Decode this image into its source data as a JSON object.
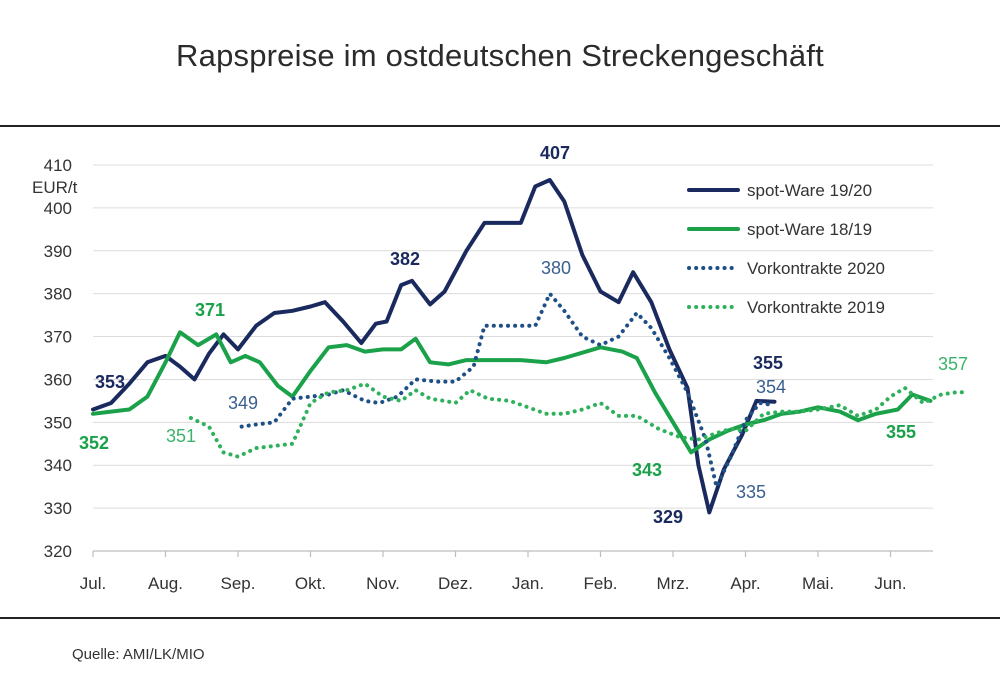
{
  "title": "Rapspreise im ostdeutschen Streckengeschäft",
  "source": "Quelle: AMI/LK/MIO",
  "chart_data": {
    "type": "line",
    "title": "Rapspreise im ostdeutschen Streckengeschäft",
    "ylabel": "EUR/t",
    "ylim": [
      320,
      410
    ],
    "yticks": [
      "410",
      "400",
      "390",
      "380",
      "370",
      "360",
      "350",
      "340",
      "330",
      "320"
    ],
    "categories": [
      "Jul.",
      "Aug.",
      "Sep.",
      "Okt.",
      "Nov.",
      "Dez.",
      "Jan.",
      "Feb.",
      "Mrz.",
      "Apr.",
      "Mai.",
      "Jun."
    ],
    "grid": true,
    "legend_position": "top-right",
    "series": [
      {
        "name": "spot-Ware 19/20",
        "color": "#1b2a5e",
        "style": "solid",
        "points": [
          [
            0,
            353
          ],
          [
            0.25,
            354.5
          ],
          [
            0.5,
            359
          ],
          [
            0.75,
            364
          ],
          [
            1.0,
            365.5
          ],
          [
            1.2,
            363
          ],
          [
            1.4,
            360
          ],
          [
            1.6,
            366
          ],
          [
            1.8,
            370.5
          ],
          [
            2.0,
            367
          ],
          [
            2.25,
            372.5
          ],
          [
            2.5,
            375.5
          ],
          [
            2.75,
            376
          ],
          [
            3.0,
            377
          ],
          [
            3.2,
            378
          ],
          [
            3.45,
            373.5
          ],
          [
            3.7,
            368.5
          ],
          [
            3.9,
            373
          ],
          [
            4.05,
            373.5
          ],
          [
            4.25,
            382
          ],
          [
            4.4,
            383
          ],
          [
            4.65,
            377.5
          ],
          [
            4.85,
            380.5
          ],
          [
            5.15,
            390
          ],
          [
            5.4,
            396.5
          ],
          [
            5.7,
            396.5
          ],
          [
            5.9,
            396.5
          ],
          [
            6.1,
            405
          ],
          [
            6.3,
            406.5
          ],
          [
            6.5,
            401.5
          ],
          [
            6.75,
            389
          ],
          [
            7.0,
            380.5
          ],
          [
            7.25,
            378
          ],
          [
            7.45,
            385
          ],
          [
            7.7,
            378
          ],
          [
            7.95,
            367
          ],
          [
            8.2,
            358
          ],
          [
            8.35,
            340
          ],
          [
            8.5,
            329
          ],
          [
            8.7,
            339
          ],
          [
            8.95,
            347
          ],
          [
            9.15,
            355
          ],
          [
            9.4,
            354.8
          ]
        ]
      },
      {
        "name": "spot-Ware 18/19",
        "color": "#1aa14a",
        "style": "solid",
        "points": [
          [
            0,
            352
          ],
          [
            0.25,
            352.5
          ],
          [
            0.5,
            353
          ],
          [
            0.75,
            356
          ],
          [
            1.0,
            364
          ],
          [
            1.2,
            371
          ],
          [
            1.45,
            368
          ],
          [
            1.7,
            370.5
          ],
          [
            1.9,
            364
          ],
          [
            2.1,
            365.5
          ],
          [
            2.3,
            364
          ],
          [
            2.55,
            358.5
          ],
          [
            2.75,
            356
          ],
          [
            3.0,
            362
          ],
          [
            3.25,
            367.5
          ],
          [
            3.5,
            368
          ],
          [
            3.75,
            366.5
          ],
          [
            4.0,
            367
          ],
          [
            4.25,
            367
          ],
          [
            4.45,
            369.5
          ],
          [
            4.65,
            364
          ],
          [
            4.9,
            363.5
          ],
          [
            5.15,
            364.5
          ],
          [
            5.4,
            364.5
          ],
          [
            5.9,
            364.5
          ],
          [
            6.25,
            364
          ],
          [
            6.5,
            365
          ],
          [
            7.0,
            367.5
          ],
          [
            7.3,
            366.5
          ],
          [
            7.5,
            365
          ],
          [
            7.75,
            357
          ],
          [
            8.0,
            350
          ],
          [
            8.25,
            343
          ],
          [
            8.5,
            346
          ],
          [
            8.75,
            348
          ],
          [
            9.0,
            349.5
          ],
          [
            9.25,
            350.5
          ],
          [
            9.5,
            352
          ],
          [
            9.75,
            352.5
          ],
          [
            10.0,
            353.5
          ],
          [
            10.3,
            352.5
          ],
          [
            10.55,
            350.5
          ],
          [
            10.8,
            352
          ],
          [
            11.1,
            353
          ],
          [
            11.3,
            356.5
          ],
          [
            11.55,
            355
          ]
        ]
      },
      {
        "name": "Vorkontrakte 2020",
        "color": "#1e4f86",
        "style": "dotted",
        "points": [
          [
            2.05,
            349
          ],
          [
            2.25,
            349.5
          ],
          [
            2.5,
            350
          ],
          [
            2.75,
            355.5
          ],
          [
            3.0,
            356
          ],
          [
            3.25,
            356.5
          ],
          [
            3.45,
            357.5
          ],
          [
            3.75,
            355
          ],
          [
            3.95,
            354.5
          ],
          [
            4.2,
            356
          ],
          [
            4.45,
            360
          ],
          [
            4.75,
            359.5
          ],
          [
            5.0,
            359.5
          ],
          [
            5.25,
            363
          ],
          [
            5.4,
            372.5
          ],
          [
            5.9,
            372.5
          ],
          [
            6.1,
            372.5
          ],
          [
            6.3,
            380
          ],
          [
            6.5,
            376
          ],
          [
            6.75,
            370
          ],
          [
            7.0,
            368
          ],
          [
            7.25,
            370
          ],
          [
            7.5,
            375.5
          ],
          [
            7.7,
            372
          ],
          [
            7.95,
            365
          ],
          [
            8.2,
            357
          ],
          [
            8.45,
            346
          ],
          [
            8.6,
            335
          ],
          [
            8.8,
            342
          ],
          [
            9.0,
            350.5
          ],
          [
            9.2,
            354.5
          ],
          [
            9.4,
            354
          ]
        ]
      },
      {
        "name": "Vorkontrakte 2019",
        "color": "#2fb15c",
        "style": "dotted",
        "points": [
          [
            1.35,
            351
          ],
          [
            1.6,
            349
          ],
          [
            1.8,
            343
          ],
          [
            2.0,
            342
          ],
          [
            2.25,
            344
          ],
          [
            2.5,
            344.5
          ],
          [
            2.75,
            345
          ],
          [
            3.0,
            354.5
          ],
          [
            3.25,
            357
          ],
          [
            3.5,
            357.5
          ],
          [
            3.75,
            359
          ],
          [
            4.0,
            356
          ],
          [
            4.25,
            355
          ],
          [
            4.45,
            357.5
          ],
          [
            4.65,
            355.5
          ],
          [
            4.85,
            355
          ],
          [
            5.0,
            354.5
          ],
          [
            5.2,
            357.5
          ],
          [
            5.45,
            355.5
          ],
          [
            5.75,
            355
          ],
          [
            6.0,
            353.5
          ],
          [
            6.25,
            352
          ],
          [
            6.5,
            352
          ],
          [
            6.75,
            353
          ],
          [
            7.0,
            354.5
          ],
          [
            7.25,
            351.5
          ],
          [
            7.5,
            351.5
          ],
          [
            7.8,
            348.5
          ],
          [
            8.1,
            346.5
          ],
          [
            8.35,
            346
          ],
          [
            8.6,
            347.5
          ],
          [
            8.8,
            348.5
          ],
          [
            9.0,
            348
          ],
          [
            9.25,
            352
          ],
          [
            9.5,
            352.5
          ],
          [
            9.75,
            352.5
          ],
          [
            10.0,
            353
          ],
          [
            10.3,
            354
          ],
          [
            10.55,
            351.5
          ],
          [
            10.8,
            353
          ],
          [
            11.0,
            356
          ],
          [
            11.2,
            358
          ],
          [
            11.45,
            354.5
          ],
          [
            11.7,
            356.5
          ],
          [
            11.9,
            357
          ],
          [
            12.0,
            357
          ]
        ]
      }
    ],
    "annotations": [
      {
        "text": "353",
        "series": "spot-Ware 19/20",
        "color": "#1b2a5e"
      },
      {
        "text": "382",
        "series": "spot-Ware 19/20",
        "color": "#1b2a5e"
      },
      {
        "text": "407",
        "series": "spot-Ware 19/20",
        "color": "#1b2a5e"
      },
      {
        "text": "329",
        "series": "spot-Ware 19/20",
        "color": "#1b2a5e"
      },
      {
        "text": "355",
        "series": "spot-Ware 19/20",
        "color": "#1b2a5e"
      },
      {
        "text": "352",
        "series": "spot-Ware 18/19",
        "color": "#1aa14a"
      },
      {
        "text": "371",
        "series": "spot-Ware 18/19",
        "color": "#1aa14a"
      },
      {
        "text": "343",
        "series": "spot-Ware 18/19",
        "color": "#1aa14a"
      },
      {
        "text": "355",
        "series": "spot-Ware 18/19",
        "color": "#1aa14a"
      },
      {
        "text": "349",
        "series": "Vorkontrakte 2020",
        "color": "#3a5f8f"
      },
      {
        "text": "380",
        "series": "Vorkontrakte 2020",
        "color": "#3a5f8f"
      },
      {
        "text": "335",
        "series": "Vorkontrakte 2020",
        "color": "#3a5f8f"
      },
      {
        "text": "354",
        "series": "Vorkontrakte 2020",
        "color": "#3a5f8f"
      },
      {
        "text": "351",
        "series": "Vorkontrakte 2019",
        "color": "#3ab46a"
      },
      {
        "text": "357",
        "series": "Vorkontrakte 2019",
        "color": "#3ab46a"
      }
    ]
  }
}
